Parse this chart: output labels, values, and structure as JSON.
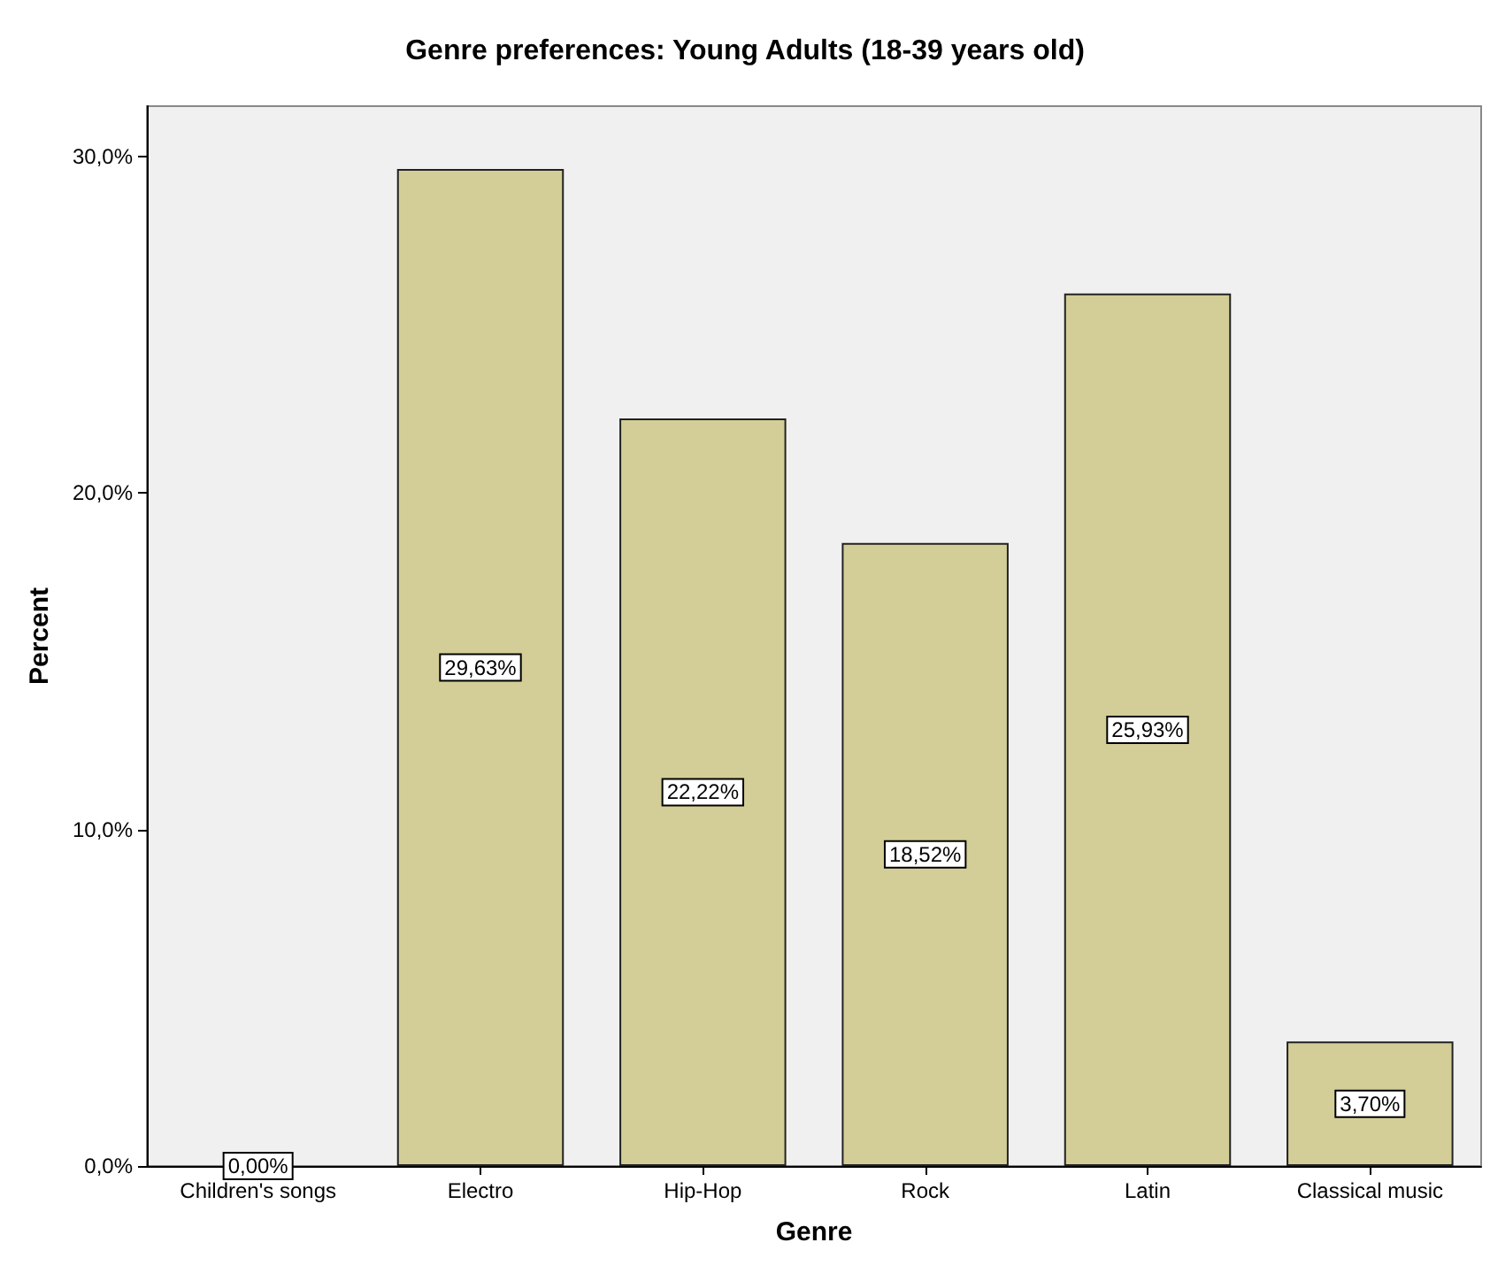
{
  "chart_data": {
    "type": "bar",
    "title": "Genre preferences: Young Adults (18-39 years old)",
    "xlabel": "Genre",
    "ylabel": "Percent",
    "categories": [
      "Children's songs",
      "Electro",
      "Hip-Hop",
      "Rock",
      "Latin",
      "Classical music"
    ],
    "values": [
      0,
      29.63,
      22.22,
      18.52,
      25.93,
      3.7
    ],
    "value_labels": [
      "0,00%",
      "29,63%",
      "22,22%",
      "18,52%",
      "25,93%",
      "3,70%"
    ],
    "color": "#d3ce97",
    "ylim": [
      0,
      31.5
    ],
    "yticks": [
      {
        "value": 0,
        "label": "0,0%"
      },
      {
        "value": 10,
        "label": "10,0%"
      },
      {
        "value": 20,
        "label": "20,0%"
      },
      {
        "value": 30,
        "label": "30,0%"
      }
    ],
    "grid": false
  }
}
